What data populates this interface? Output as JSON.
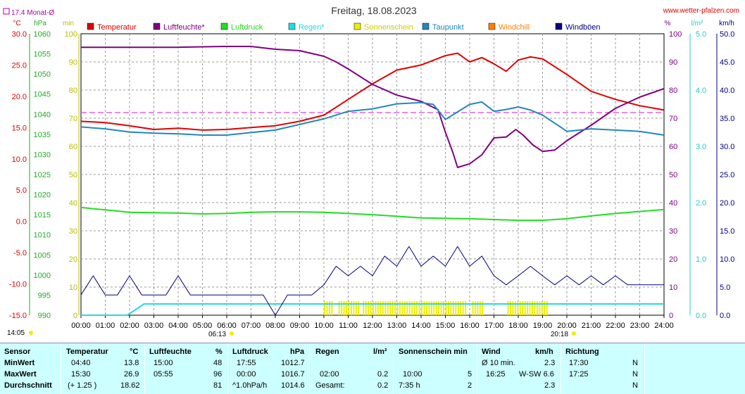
{
  "header": {
    "title": "Freitag, 18.08.2023",
    "website": "www.wetter-pfalzen.com",
    "monthly_avg": "17.4 Monat-Ø"
  },
  "units": {
    "left": [
      "°C",
      "hPa",
      "min"
    ],
    "right": [
      "%",
      "l/m²",
      "km/h"
    ]
  },
  "legend": [
    {
      "label": "Temperatur",
      "color": "#e00000"
    },
    {
      "label": "Luftfeuchte*",
      "color": "#800080"
    },
    {
      "label": "Luftdruck",
      "color": "#22dd22"
    },
    {
      "label": "Regen*",
      "color": "#22dddd"
    },
    {
      "label": "Sonnenschein",
      "color": "#eeee00"
    },
    {
      "label": "Taupunkt",
      "color": "#2288bb"
    },
    {
      "label": "Windchill",
      "color": "#ff8000"
    },
    {
      "label": "Windböen",
      "color": "#000080"
    }
  ],
  "axes": {
    "temp_ticks": [
      "30.0",
      "25.0",
      "20.0",
      "15.0",
      "10.0",
      "5.0",
      "0.0",
      "-5.0",
      "-10.0",
      "-15.0"
    ],
    "press_ticks": [
      "1060",
      "1055",
      "1050",
      "1045",
      "1040",
      "1035",
      "1030",
      "1025",
      "1020",
      "1015",
      "1010",
      "1005",
      "1000",
      "995",
      "990"
    ],
    "min_ticks": [
      "100",
      "90",
      "80",
      "70",
      "60",
      "50",
      "40",
      "30",
      "20",
      "10",
      "0"
    ],
    "hum_ticks": [
      "100",
      "90",
      "80",
      "70",
      "60",
      "50",
      "40",
      "30",
      "20",
      "10",
      "0"
    ],
    "rain_ticks": [
      "5.0",
      "4.0",
      "3.0",
      "2.0",
      "1.0",
      "0.0"
    ],
    "wind_ticks": [
      "50.0",
      "45.0",
      "40.0",
      "35.0",
      "30.0",
      "25.0",
      "20.0",
      "15.0",
      "10.0",
      "5.0",
      "0.0"
    ],
    "x_ticks": [
      "00:00",
      "01:00",
      "02:00",
      "03:00",
      "04:00",
      "05:00",
      "06:00",
      "07:00",
      "08:00",
      "09:00",
      "10:00",
      "11:00",
      "12:00",
      "13:00",
      "14:00",
      "15:00",
      "16:00",
      "17:00",
      "18:00",
      "19:00",
      "20:00",
      "21:00",
      "22:00",
      "23:00",
      "24:00"
    ],
    "sunrise": "06:13",
    "sunset": "20:18",
    "start_time": "14:05"
  },
  "chart_data": {
    "type": "line",
    "x_unit": "hours",
    "xlim": [
      0,
      24
    ],
    "monthly_avg_temp": 17.4,
    "series": [
      {
        "name": "Temperatur",
        "axis": "temp",
        "ylim": [
          -15,
          30
        ],
        "points": [
          [
            0,
            16.0
          ],
          [
            1,
            15.8
          ],
          [
            2,
            15.3
          ],
          [
            3,
            14.7
          ],
          [
            4,
            14.9
          ],
          [
            5,
            14.6
          ],
          [
            6,
            14.7
          ],
          [
            7,
            15.0
          ],
          [
            8,
            15.3
          ],
          [
            9,
            16.0
          ],
          [
            10,
            17.0
          ],
          [
            11,
            19.5
          ],
          [
            12,
            22.0
          ],
          [
            13,
            24.2
          ],
          [
            14,
            25.0
          ],
          [
            15,
            26.5
          ],
          [
            15.5,
            26.9
          ],
          [
            16,
            25.5
          ],
          [
            16.5,
            26.2
          ],
          [
            17,
            25.2
          ],
          [
            17.5,
            24.0
          ],
          [
            18,
            25.8
          ],
          [
            18.5,
            26.3
          ],
          [
            19,
            26.0
          ],
          [
            20,
            23.5
          ],
          [
            21,
            20.8
          ],
          [
            22,
            19.5
          ],
          [
            23,
            18.5
          ],
          [
            24,
            17.8
          ]
        ]
      },
      {
        "name": "Luftfeuchte*",
        "axis": "hum",
        "ylim": [
          0,
          100
        ],
        "points": [
          [
            0,
            95.2
          ],
          [
            2,
            95.2
          ],
          [
            4,
            95.2
          ],
          [
            5.9,
            95.5
          ],
          [
            7,
            95.5
          ],
          [
            8,
            94.5
          ],
          [
            9,
            94
          ],
          [
            10,
            92
          ],
          [
            10.5,
            90
          ],
          [
            11,
            87.5
          ],
          [
            12,
            82
          ],
          [
            13,
            78.2
          ],
          [
            14,
            76
          ],
          [
            14.7,
            73
          ],
          [
            15,
            65
          ],
          [
            15.3,
            58
          ],
          [
            15.5,
            52.5
          ],
          [
            16,
            53.8
          ],
          [
            16.5,
            57
          ],
          [
            17,
            63
          ],
          [
            17.5,
            63.3
          ],
          [
            17.9,
            66
          ],
          [
            18.2,
            64
          ],
          [
            18.6,
            60.5
          ],
          [
            19,
            58.2
          ],
          [
            19.5,
            58.7
          ],
          [
            20,
            62
          ],
          [
            21,
            67.5
          ],
          [
            22,
            73.5
          ],
          [
            23,
            77.5
          ],
          [
            24,
            80.5
          ]
        ]
      },
      {
        "name": "Luftdruck",
        "axis": "press",
        "ylim": [
          990,
          1060
        ],
        "points": [
          [
            0,
            1016.8
          ],
          [
            1,
            1016.2
          ],
          [
            2,
            1015.6
          ],
          [
            3,
            1015.5
          ],
          [
            4,
            1015.4
          ],
          [
            5,
            1015.2
          ],
          [
            6,
            1015.3
          ],
          [
            7,
            1015.6
          ],
          [
            8,
            1015.7
          ],
          [
            9,
            1015.7
          ],
          [
            10,
            1015.6
          ],
          [
            11,
            1015.3
          ],
          [
            12,
            1015.0
          ],
          [
            13,
            1014.6
          ],
          [
            14,
            1014.2
          ],
          [
            15,
            1014.1
          ],
          [
            16,
            1014.0
          ],
          [
            17,
            1013.8
          ],
          [
            18,
            1013.6
          ],
          [
            19,
            1013.6
          ],
          [
            20,
            1014.0
          ],
          [
            21,
            1014.7
          ],
          [
            22,
            1015.3
          ],
          [
            23,
            1015.8
          ],
          [
            24,
            1016.3
          ]
        ]
      },
      {
        "name": "Regen*",
        "axis": "rain",
        "ylim": [
          0,
          5
        ],
        "points": [
          [
            0,
            0
          ],
          [
            1.9,
            0
          ],
          [
            2.6,
            0.2
          ],
          [
            24,
            0.2
          ]
        ]
      },
      {
        "name": "Taupunkt",
        "axis": "temp",
        "ylim": [
          -15,
          30
        ],
        "points": [
          [
            0,
            15.1
          ],
          [
            1,
            14.8
          ],
          [
            2,
            14.3
          ],
          [
            3,
            14.1
          ],
          [
            4,
            14.0
          ],
          [
            5,
            13.8
          ],
          [
            6,
            13.8
          ],
          [
            7,
            14.2
          ],
          [
            8,
            14.6
          ],
          [
            9,
            15.5
          ],
          [
            10,
            16.4
          ],
          [
            11,
            17.6
          ],
          [
            12,
            18.0
          ],
          [
            13,
            18.8
          ],
          [
            14,
            19.0
          ],
          [
            14.5,
            18.7
          ],
          [
            15,
            16.3
          ],
          [
            15.5,
            17.5
          ],
          [
            16,
            18.7
          ],
          [
            16.5,
            19.1
          ],
          [
            17,
            17.6
          ],
          [
            17.5,
            17.9
          ],
          [
            18,
            18.3
          ],
          [
            18.5,
            17.8
          ],
          [
            19,
            17.0
          ],
          [
            19.5,
            15.7
          ],
          [
            20,
            14.4
          ],
          [
            21,
            14.8
          ],
          [
            22,
            14.6
          ],
          [
            23,
            14.4
          ],
          [
            24,
            13.8
          ]
        ]
      },
      {
        "name": "Windböen",
        "axis": "wind",
        "ylim": [
          0,
          50
        ],
        "points": [
          [
            0,
            3.6
          ],
          [
            0.5,
            7.0
          ],
          [
            1,
            3.6
          ],
          [
            1.5,
            3.6
          ],
          [
            2,
            7.0
          ],
          [
            2.5,
            3.6
          ],
          [
            3,
            3.6
          ],
          [
            3.5,
            3.6
          ],
          [
            4,
            7.0
          ],
          [
            4.5,
            3.6
          ],
          [
            5,
            3.6
          ],
          [
            5.5,
            3.6
          ],
          [
            6,
            3.6
          ],
          [
            6.5,
            3.6
          ],
          [
            7,
            3.6
          ],
          [
            7.5,
            3.6
          ],
          [
            8,
            0
          ],
          [
            8.5,
            3.6
          ],
          [
            9,
            3.6
          ],
          [
            9.5,
            3.6
          ],
          [
            10,
            5.4
          ],
          [
            10.5,
            8.7
          ],
          [
            11,
            7.0
          ],
          [
            11.5,
            8.7
          ],
          [
            12,
            7.0
          ],
          [
            12.5,
            10.5
          ],
          [
            13,
            8.7
          ],
          [
            13.5,
            12.2
          ],
          [
            14,
            8.7
          ],
          [
            14.5,
            10.5
          ],
          [
            15,
            8.7
          ],
          [
            15.5,
            12.2
          ],
          [
            16,
            8.7
          ],
          [
            16.5,
            10.5
          ],
          [
            17,
            7.0
          ],
          [
            17.5,
            5.4
          ],
          [
            18,
            7.0
          ],
          [
            18.5,
            8.7
          ],
          [
            19,
            7.0
          ],
          [
            19.5,
            5.4
          ],
          [
            20,
            7.0
          ],
          [
            20.5,
            5.4
          ],
          [
            21,
            7.0
          ],
          [
            21.5,
            5.4
          ],
          [
            22,
            7.0
          ],
          [
            22.5,
            5.4
          ],
          [
            23,
            5.4
          ],
          [
            23.5,
            5.4
          ],
          [
            24,
            5.4
          ]
        ]
      }
    ],
    "sunshine_bars_hours": [
      [
        10.0,
        10.35
      ],
      [
        10.6,
        11.4
      ],
      [
        11.6,
        13.0
      ],
      [
        13.1,
        15.8
      ],
      [
        16.1,
        16.55
      ],
      [
        17.55,
        19.25
      ]
    ]
  },
  "table": {
    "headers": [
      "Sensor",
      "Temperatur",
      "°C",
      "Luftfeuchte",
      "%",
      "Luftdruck",
      "hPa",
      "Regen",
      "l/m²",
      "Sonnenschein min",
      "Wind",
      "km/h",
      "Richtung"
    ],
    "rows": [
      {
        "label": "MinWert",
        "t_time": "04:40",
        "t_val": "13.8",
        "h_time": "15:00",
        "h_val": "48",
        "p_time": "17:55",
        "p_val": "1012.7",
        "r_time": "",
        "r_val": "",
        "s_time": "",
        "s_val": "",
        "w_time": "Ø 10 min.",
        "w_val": "2.3",
        "d_time": "17:30",
        "d_val": "N"
      },
      {
        "label": "MaxWert",
        "t_time": "15:30",
        "t_val": "26.9",
        "h_time": "05:55",
        "h_val": "96",
        "p_time": "00:00",
        "p_val": "1016.7",
        "r_time": "02:00",
        "r_val": "0.2",
        "s_time": "10:00",
        "s_val": "5",
        "w_time": "16:25",
        "w_val": "W-SW 6.6",
        "d_time": "17:25",
        "d_val": "N"
      },
      {
        "label": "Durchschnitt",
        "t_time": "(+ 1.25 )",
        "t_val": "18.62",
        "h_time": "",
        "h_val": "81",
        "p_time": "^1.0hPa/h",
        "p_val": "1014.6",
        "r_time": "Gesamt:",
        "r_val": "0.2",
        "s_time": "7:35 h",
        "s_val": "2",
        "w_time": "",
        "w_val": "2.3",
        "d_time": "",
        "d_val": "N"
      }
    ]
  }
}
